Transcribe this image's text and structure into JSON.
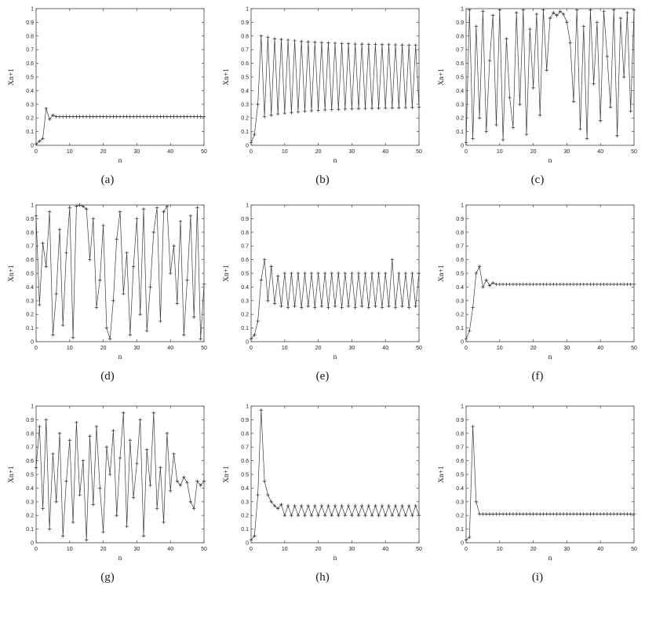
{
  "style": {
    "background": "#ffffff",
    "line_color": "#3a3a3a",
    "axis_color": "#444444",
    "text_color": "#222222",
    "marker_glyph": "+"
  },
  "chart_data": [
    {
      "id": "a",
      "caption": "(a)",
      "type": "line",
      "marker": "+",
      "xlabel": "n",
      "ylabel": "Xn+1",
      "xlim": [
        0,
        50
      ],
      "ylim": [
        0,
        1
      ],
      "xticks": [
        0,
        10,
        20,
        30,
        40,
        50
      ],
      "yticks": [
        0,
        0.1,
        0.2,
        0.3,
        0.4,
        0.5,
        0.6,
        0.7,
        0.8,
        0.9,
        1
      ],
      "values": [
        0.01,
        0.03,
        0.05,
        0.27,
        0.19,
        0.22,
        0.21,
        0.21,
        0.21,
        0.21,
        0.21,
        0.21,
        0.21,
        0.21,
        0.21,
        0.21,
        0.21,
        0.21,
        0.21,
        0.21,
        0.21,
        0.21,
        0.21,
        0.21,
        0.21,
        0.21,
        0.21,
        0.21,
        0.21,
        0.21,
        0.21,
        0.21,
        0.21,
        0.21,
        0.21,
        0.21,
        0.21,
        0.21,
        0.21,
        0.21,
        0.21,
        0.21,
        0.21,
        0.21,
        0.21,
        0.21,
        0.21,
        0.21,
        0.21,
        0.21,
        0.21
      ]
    },
    {
      "id": "b",
      "caption": "(b)",
      "type": "line",
      "marker": "+",
      "xlabel": "n",
      "ylabel": "Xn+1",
      "xlim": [
        0,
        50
      ],
      "ylim": [
        0,
        1
      ],
      "xticks": [
        0,
        10,
        20,
        30,
        40,
        50
      ],
      "yticks": [
        0,
        0.1,
        0.2,
        0.3,
        0.4,
        0.5,
        0.6,
        0.7,
        0.8,
        0.9,
        1
      ],
      "values": [
        0.02,
        0.08,
        0.3,
        0.8,
        0.21,
        0.79,
        0.22,
        0.78,
        0.23,
        0.775,
        0.235,
        0.77,
        0.24,
        0.765,
        0.245,
        0.76,
        0.25,
        0.757,
        0.253,
        0.754,
        0.256,
        0.751,
        0.259,
        0.749,
        0.261,
        0.747,
        0.263,
        0.745,
        0.265,
        0.743,
        0.267,
        0.741,
        0.269,
        0.74,
        0.27,
        0.739,
        0.271,
        0.738,
        0.272,
        0.737,
        0.273,
        0.736,
        0.274,
        0.735,
        0.275,
        0.734,
        0.276,
        0.733,
        0.277,
        0.732,
        0.278
      ]
    },
    {
      "id": "c",
      "caption": "(c)",
      "type": "line",
      "marker": "+",
      "xlabel": "n",
      "ylabel": "Xn+1",
      "xlim": [
        0,
        50
      ],
      "ylim": [
        0,
        1
      ],
      "xticks": [
        0,
        10,
        20,
        30,
        40,
        50
      ],
      "yticks": [
        0,
        0.1,
        0.2,
        0.3,
        0.4,
        0.5,
        0.6,
        0.7,
        0.8,
        0.9,
        1
      ],
      "values": [
        0.02,
        0.99,
        0.05,
        0.87,
        0.2,
        0.98,
        0.1,
        0.62,
        0.95,
        0.15,
        0.99,
        0.04,
        0.78,
        0.35,
        0.13,
        0.97,
        0.3,
        0.99,
        0.08,
        0.85,
        0.42,
        0.96,
        0.22,
        0.99,
        0.55,
        0.93,
        0.97,
        0.95,
        0.98,
        0.96,
        0.9,
        0.75,
        0.32,
        0.99,
        0.12,
        0.87,
        0.05,
        0.99,
        0.45,
        0.9,
        0.18,
        0.98,
        0.65,
        0.28,
        0.99,
        0.07,
        0.93,
        0.5,
        0.97,
        0.25,
        0.99
      ]
    },
    {
      "id": "d",
      "caption": "(d)",
      "type": "line",
      "marker": "+",
      "xlabel": "n",
      "ylabel": "Xn+1",
      "xlim": [
        0,
        50
      ],
      "ylim": [
        0,
        1
      ],
      "xticks": [
        0,
        10,
        20,
        30,
        40,
        50
      ],
      "yticks": [
        0,
        0.1,
        0.2,
        0.3,
        0.4,
        0.5,
        0.6,
        0.7,
        0.8,
        0.9,
        1
      ],
      "values": [
        0.92,
        0.27,
        0.72,
        0.55,
        0.95,
        0.05,
        0.35,
        0.82,
        0.12,
        0.65,
        0.98,
        0.03,
        0.99,
        1.0,
        0.99,
        0.97,
        0.6,
        0.9,
        0.25,
        0.45,
        0.85,
        0.1,
        0.02,
        0.3,
        0.75,
        0.95,
        0.35,
        0.65,
        0.05,
        0.55,
        0.9,
        0.2,
        0.97,
        0.08,
        0.4,
        0.8,
        0.98,
        0.15,
        0.95,
        0.99,
        0.5,
        0.7,
        0.28,
        0.88,
        0.05,
        0.45,
        0.92,
        0.18,
        0.98,
        0.02,
        0.42
      ]
    },
    {
      "id": "e",
      "caption": "(e)",
      "type": "line",
      "marker": "+",
      "xlabel": "n",
      "ylabel": "Xn+1",
      "xlim": [
        0,
        50
      ],
      "ylim": [
        0,
        1
      ],
      "xticks": [
        0,
        10,
        20,
        30,
        40,
        50
      ],
      "yticks": [
        0,
        0.1,
        0.2,
        0.3,
        0.4,
        0.5,
        0.6,
        0.7,
        0.8,
        0.9,
        1
      ],
      "values": [
        0.02,
        0.05,
        0.15,
        0.45,
        0.6,
        0.3,
        0.55,
        0.28,
        0.48,
        0.26,
        0.5,
        0.25,
        0.5,
        0.26,
        0.5,
        0.25,
        0.5,
        0.26,
        0.5,
        0.25,
        0.5,
        0.26,
        0.5,
        0.25,
        0.5,
        0.26,
        0.5,
        0.25,
        0.5,
        0.26,
        0.5,
        0.25,
        0.5,
        0.26,
        0.5,
        0.25,
        0.5,
        0.26,
        0.5,
        0.25,
        0.5,
        0.26,
        0.6,
        0.25,
        0.5,
        0.26,
        0.5,
        0.25,
        0.5,
        0.26,
        0.5
      ]
    },
    {
      "id": "f",
      "caption": "(f)",
      "type": "line",
      "marker": "+",
      "xlabel": "n",
      "ylabel": "Xn+1",
      "xlim": [
        0,
        50
      ],
      "ylim": [
        0,
        1
      ],
      "xticks": [
        0,
        10,
        20,
        30,
        40,
        50
      ],
      "yticks": [
        0,
        0.1,
        0.2,
        0.3,
        0.4,
        0.5,
        0.6,
        0.7,
        0.8,
        0.9,
        1
      ],
      "values": [
        0.02,
        0.08,
        0.25,
        0.5,
        0.55,
        0.4,
        0.45,
        0.41,
        0.43,
        0.42,
        0.42,
        0.42,
        0.42,
        0.42,
        0.42,
        0.42,
        0.42,
        0.42,
        0.42,
        0.42,
        0.42,
        0.42,
        0.42,
        0.42,
        0.42,
        0.42,
        0.42,
        0.42,
        0.42,
        0.42,
        0.42,
        0.42,
        0.42,
        0.42,
        0.42,
        0.42,
        0.42,
        0.42,
        0.42,
        0.42,
        0.42,
        0.42,
        0.42,
        0.42,
        0.42,
        0.42,
        0.42,
        0.42,
        0.42,
        0.42,
        0.42
      ]
    },
    {
      "id": "g",
      "caption": "(g)",
      "type": "line",
      "marker": "+",
      "xlabel": "n",
      "ylabel": "Xn+1",
      "xlim": [
        0,
        50
      ],
      "ylim": [
        0,
        1
      ],
      "xticks": [
        0,
        10,
        20,
        30,
        40,
        50
      ],
      "yticks": [
        0,
        0.1,
        0.2,
        0.3,
        0.4,
        0.5,
        0.6,
        0.7,
        0.8,
        0.9,
        1
      ],
      "values": [
        0.55,
        0.85,
        0.25,
        0.9,
        0.1,
        0.65,
        0.3,
        0.8,
        0.05,
        0.45,
        0.75,
        0.15,
        0.88,
        0.35,
        0.6,
        0.02,
        0.78,
        0.28,
        0.85,
        0.4,
        0.08,
        0.7,
        0.5,
        0.82,
        0.2,
        0.62,
        0.95,
        0.12,
        0.75,
        0.33,
        0.58,
        0.9,
        0.05,
        0.68,
        0.42,
        0.95,
        0.25,
        0.55,
        0.15,
        0.8,
        0.38,
        0.65,
        0.45,
        0.42,
        0.48,
        0.44,
        0.3,
        0.25,
        0.45,
        0.42,
        0.45
      ]
    },
    {
      "id": "h",
      "caption": "(h)",
      "type": "line",
      "marker": "+",
      "xlabel": "n",
      "ylabel": "Xn+1",
      "xlim": [
        0,
        50
      ],
      "ylim": [
        0,
        1
      ],
      "xticks": [
        0,
        10,
        20,
        30,
        40,
        50
      ],
      "yticks": [
        0,
        0.1,
        0.2,
        0.3,
        0.4,
        0.5,
        0.6,
        0.7,
        0.8,
        0.9,
        1
      ],
      "values": [
        0.02,
        0.05,
        0.35,
        0.97,
        0.45,
        0.35,
        0.3,
        0.27,
        0.25,
        0.28,
        0.2,
        0.27,
        0.2,
        0.27,
        0.2,
        0.27,
        0.2,
        0.27,
        0.2,
        0.27,
        0.2,
        0.27,
        0.2,
        0.27,
        0.2,
        0.27,
        0.2,
        0.27,
        0.2,
        0.27,
        0.2,
        0.27,
        0.2,
        0.27,
        0.2,
        0.27,
        0.2,
        0.27,
        0.2,
        0.27,
        0.2,
        0.27,
        0.2,
        0.27,
        0.2,
        0.27,
        0.2,
        0.27,
        0.2,
        0.27,
        0.2
      ]
    },
    {
      "id": "i",
      "caption": "(i)",
      "type": "line",
      "marker": "+",
      "xlabel": "n",
      "ylabel": "Xn+1",
      "xlim": [
        0,
        50
      ],
      "ylim": [
        0,
        1
      ],
      "xticks": [
        0,
        10,
        20,
        30,
        40,
        50
      ],
      "yticks": [
        0,
        0.1,
        0.2,
        0.3,
        0.4,
        0.5,
        0.6,
        0.7,
        0.8,
        0.9,
        1
      ],
      "values": [
        0.02,
        0.04,
        0.85,
        0.3,
        0.21,
        0.21,
        0.21,
        0.21,
        0.21,
        0.21,
        0.21,
        0.21,
        0.21,
        0.21,
        0.21,
        0.21,
        0.21,
        0.21,
        0.21,
        0.21,
        0.21,
        0.21,
        0.21,
        0.21,
        0.21,
        0.21,
        0.21,
        0.21,
        0.21,
        0.21,
        0.21,
        0.21,
        0.21,
        0.21,
        0.21,
        0.21,
        0.21,
        0.21,
        0.21,
        0.21,
        0.21,
        0.21,
        0.21,
        0.21,
        0.21,
        0.21,
        0.21,
        0.21,
        0.21,
        0.21,
        0.21
      ]
    }
  ]
}
